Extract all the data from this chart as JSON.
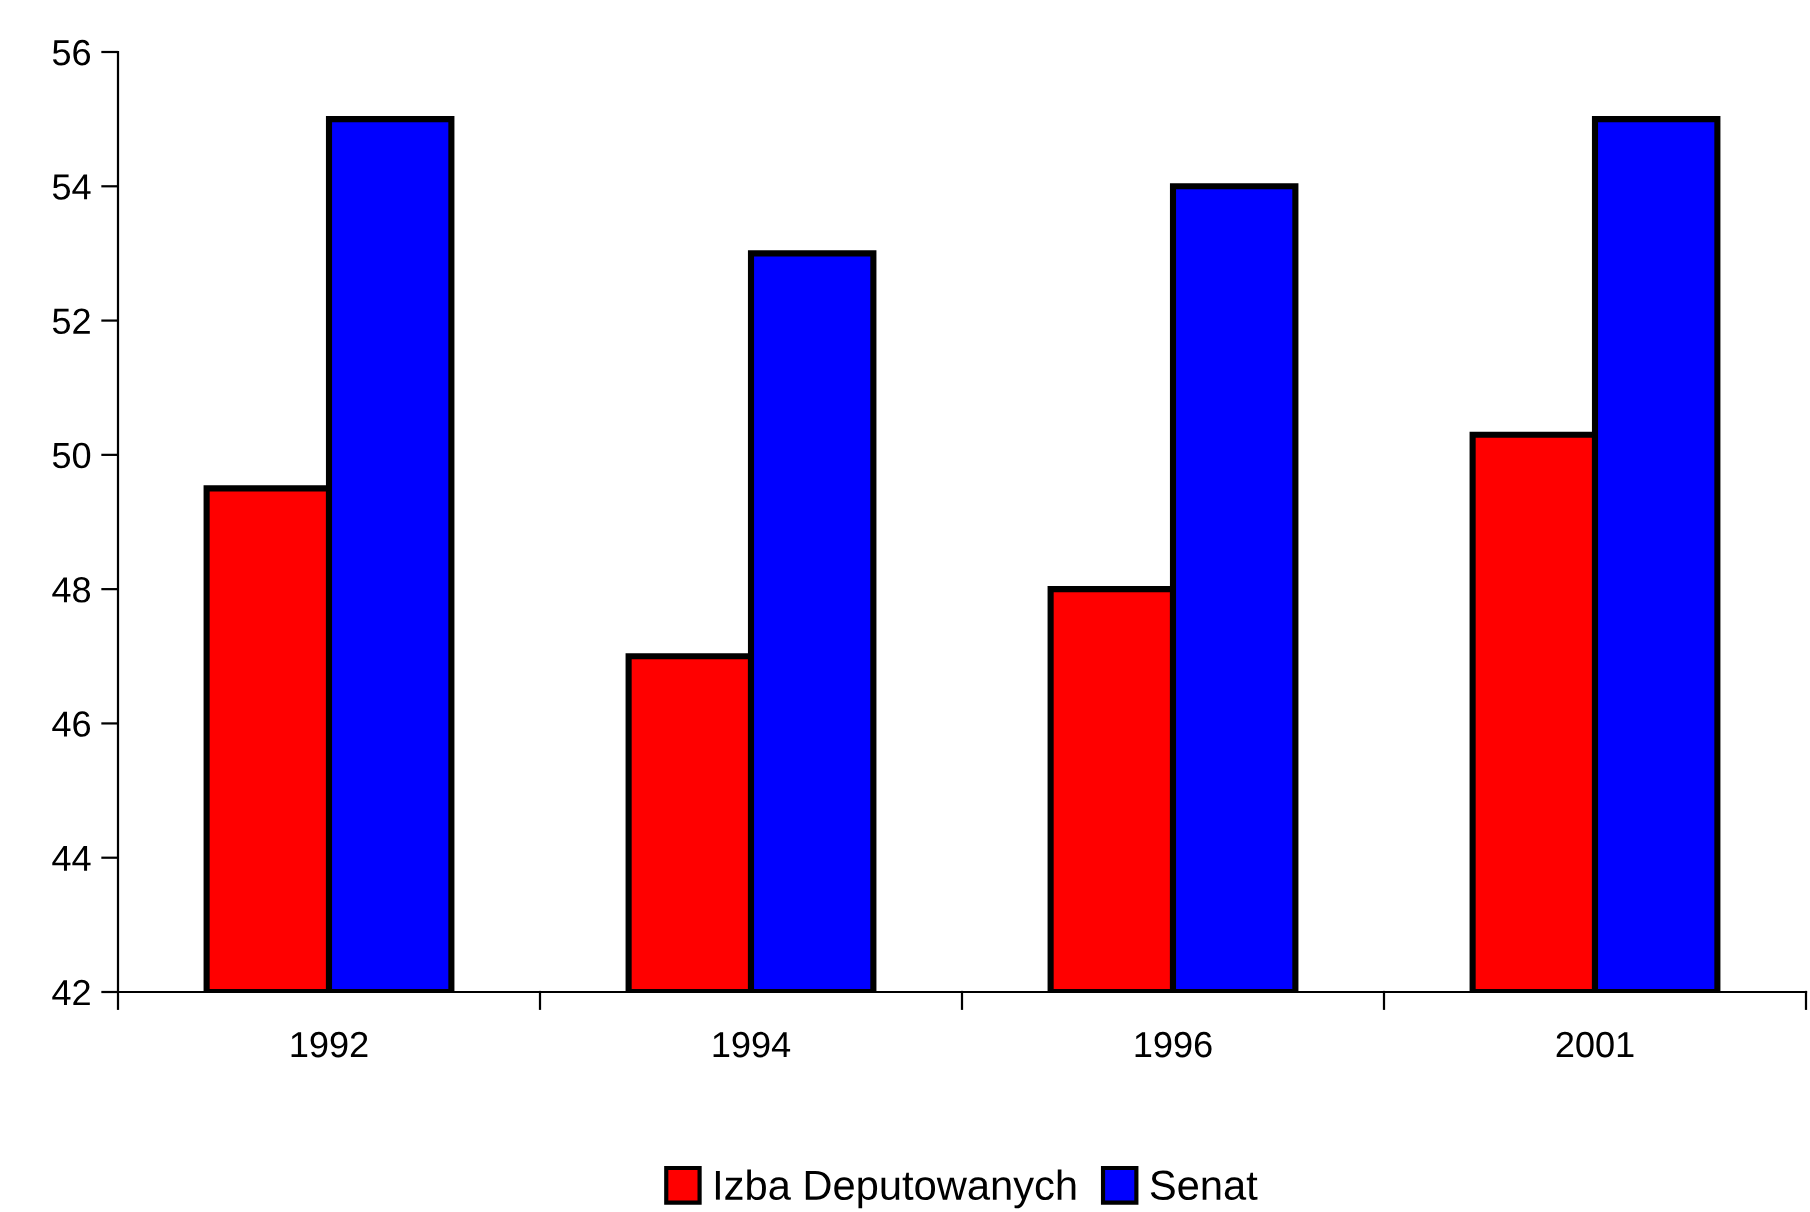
{
  "chart_data": {
    "type": "bar",
    "categories": [
      "1992",
      "1994",
      "1996",
      "2001"
    ],
    "series": [
      {
        "name": "Izba Deputowanych",
        "color": "#ff0000",
        "values": [
          49.5,
          47,
          48,
          50.3
        ]
      },
      {
        "name": "Senat",
        "color": "#0000ff",
        "values": [
          55,
          53,
          54,
          55
        ]
      }
    ],
    "ylim": [
      42,
      56
    ],
    "yticks": [
      42,
      44,
      46,
      48,
      50,
      52,
      54,
      56
    ],
    "grid": false,
    "legend": "bottom"
  }
}
